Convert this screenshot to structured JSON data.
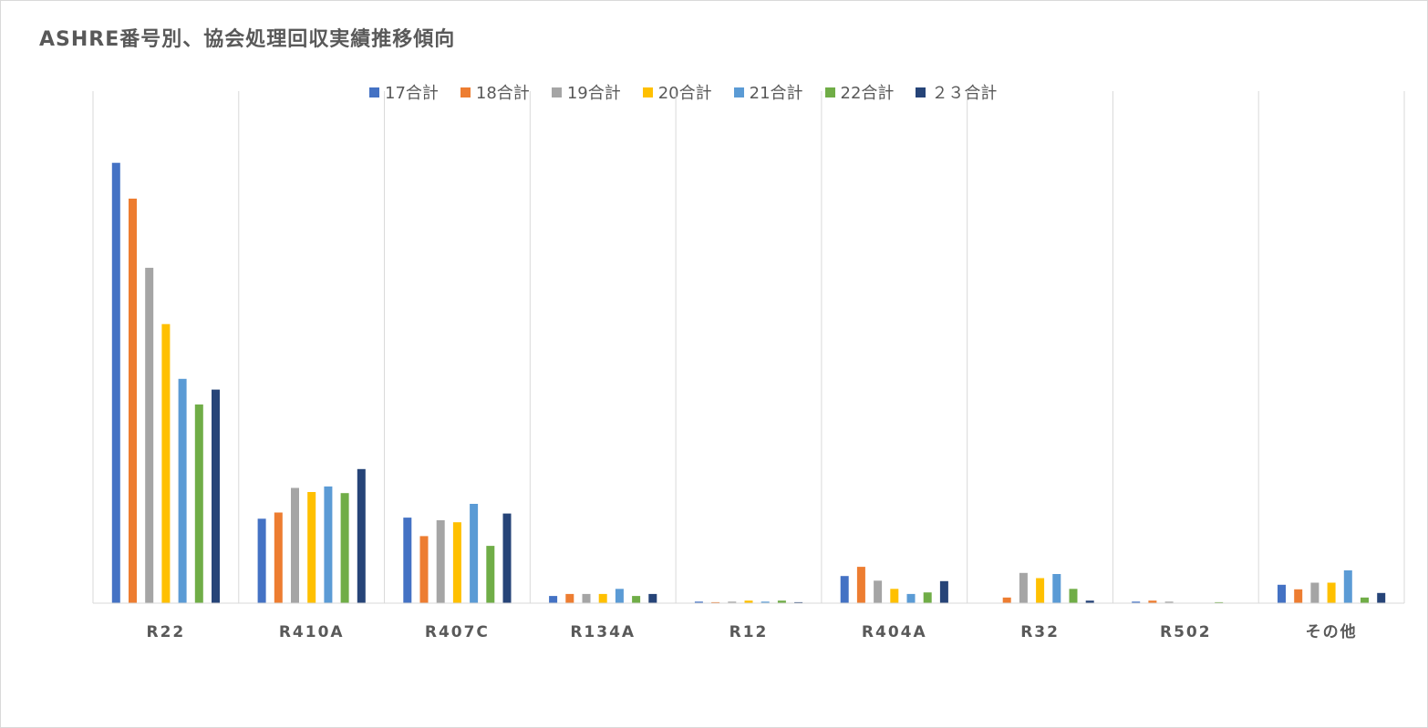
{
  "chart_data": {
    "type": "bar",
    "title": "ASHRE番号別、協会処理回収実績推移傾向",
    "xlabel": "",
    "ylabel": "",
    "categories": [
      "R22",
      "R410A",
      "R407C",
      "R134A",
      "R12",
      "R404A",
      "R32",
      "R502",
      "その他"
    ],
    "ylim": [
      0,
      100
    ],
    "grid": "vertical category separators",
    "legend_position": "top",
    "series": [
      {
        "name": "17合計",
        "color": "#4472c4",
        "values": [
          86.0,
          16.5,
          16.7,
          1.4,
          0.3,
          5.3,
          0.0,
          0.3,
          3.6
        ]
      },
      {
        "name": "18合計",
        "color": "#ed7d31",
        "values": [
          79.0,
          17.7,
          13.1,
          1.8,
          0.2,
          7.1,
          1.1,
          0.5,
          2.7
        ]
      },
      {
        "name": "19合計",
        "color": "#a5a5a5",
        "values": [
          65.5,
          22.5,
          16.2,
          1.8,
          0.3,
          4.4,
          5.9,
          0.3,
          4.0
        ]
      },
      {
        "name": "20合計",
        "color": "#ffc000",
        "values": [
          54.5,
          21.7,
          15.8,
          1.8,
          0.5,
          2.8,
          4.9,
          0.0,
          4.0
        ]
      },
      {
        "name": "21合計",
        "color": "#5b9bd5",
        "values": [
          43.8,
          22.8,
          19.4,
          2.8,
          0.3,
          1.8,
          5.7,
          0.0,
          6.4
        ]
      },
      {
        "name": "22合計",
        "color": "#70ad47",
        "values": [
          38.8,
          21.5,
          11.2,
          1.4,
          0.5,
          2.1,
          2.8,
          0.2,
          1.1
        ]
      },
      {
        "name": "２３合計",
        "color": "#264478",
        "values": [
          41.7,
          26.2,
          17.5,
          1.8,
          0.2,
          4.3,
          0.5,
          0.0,
          2.0
        ]
      }
    ]
  }
}
